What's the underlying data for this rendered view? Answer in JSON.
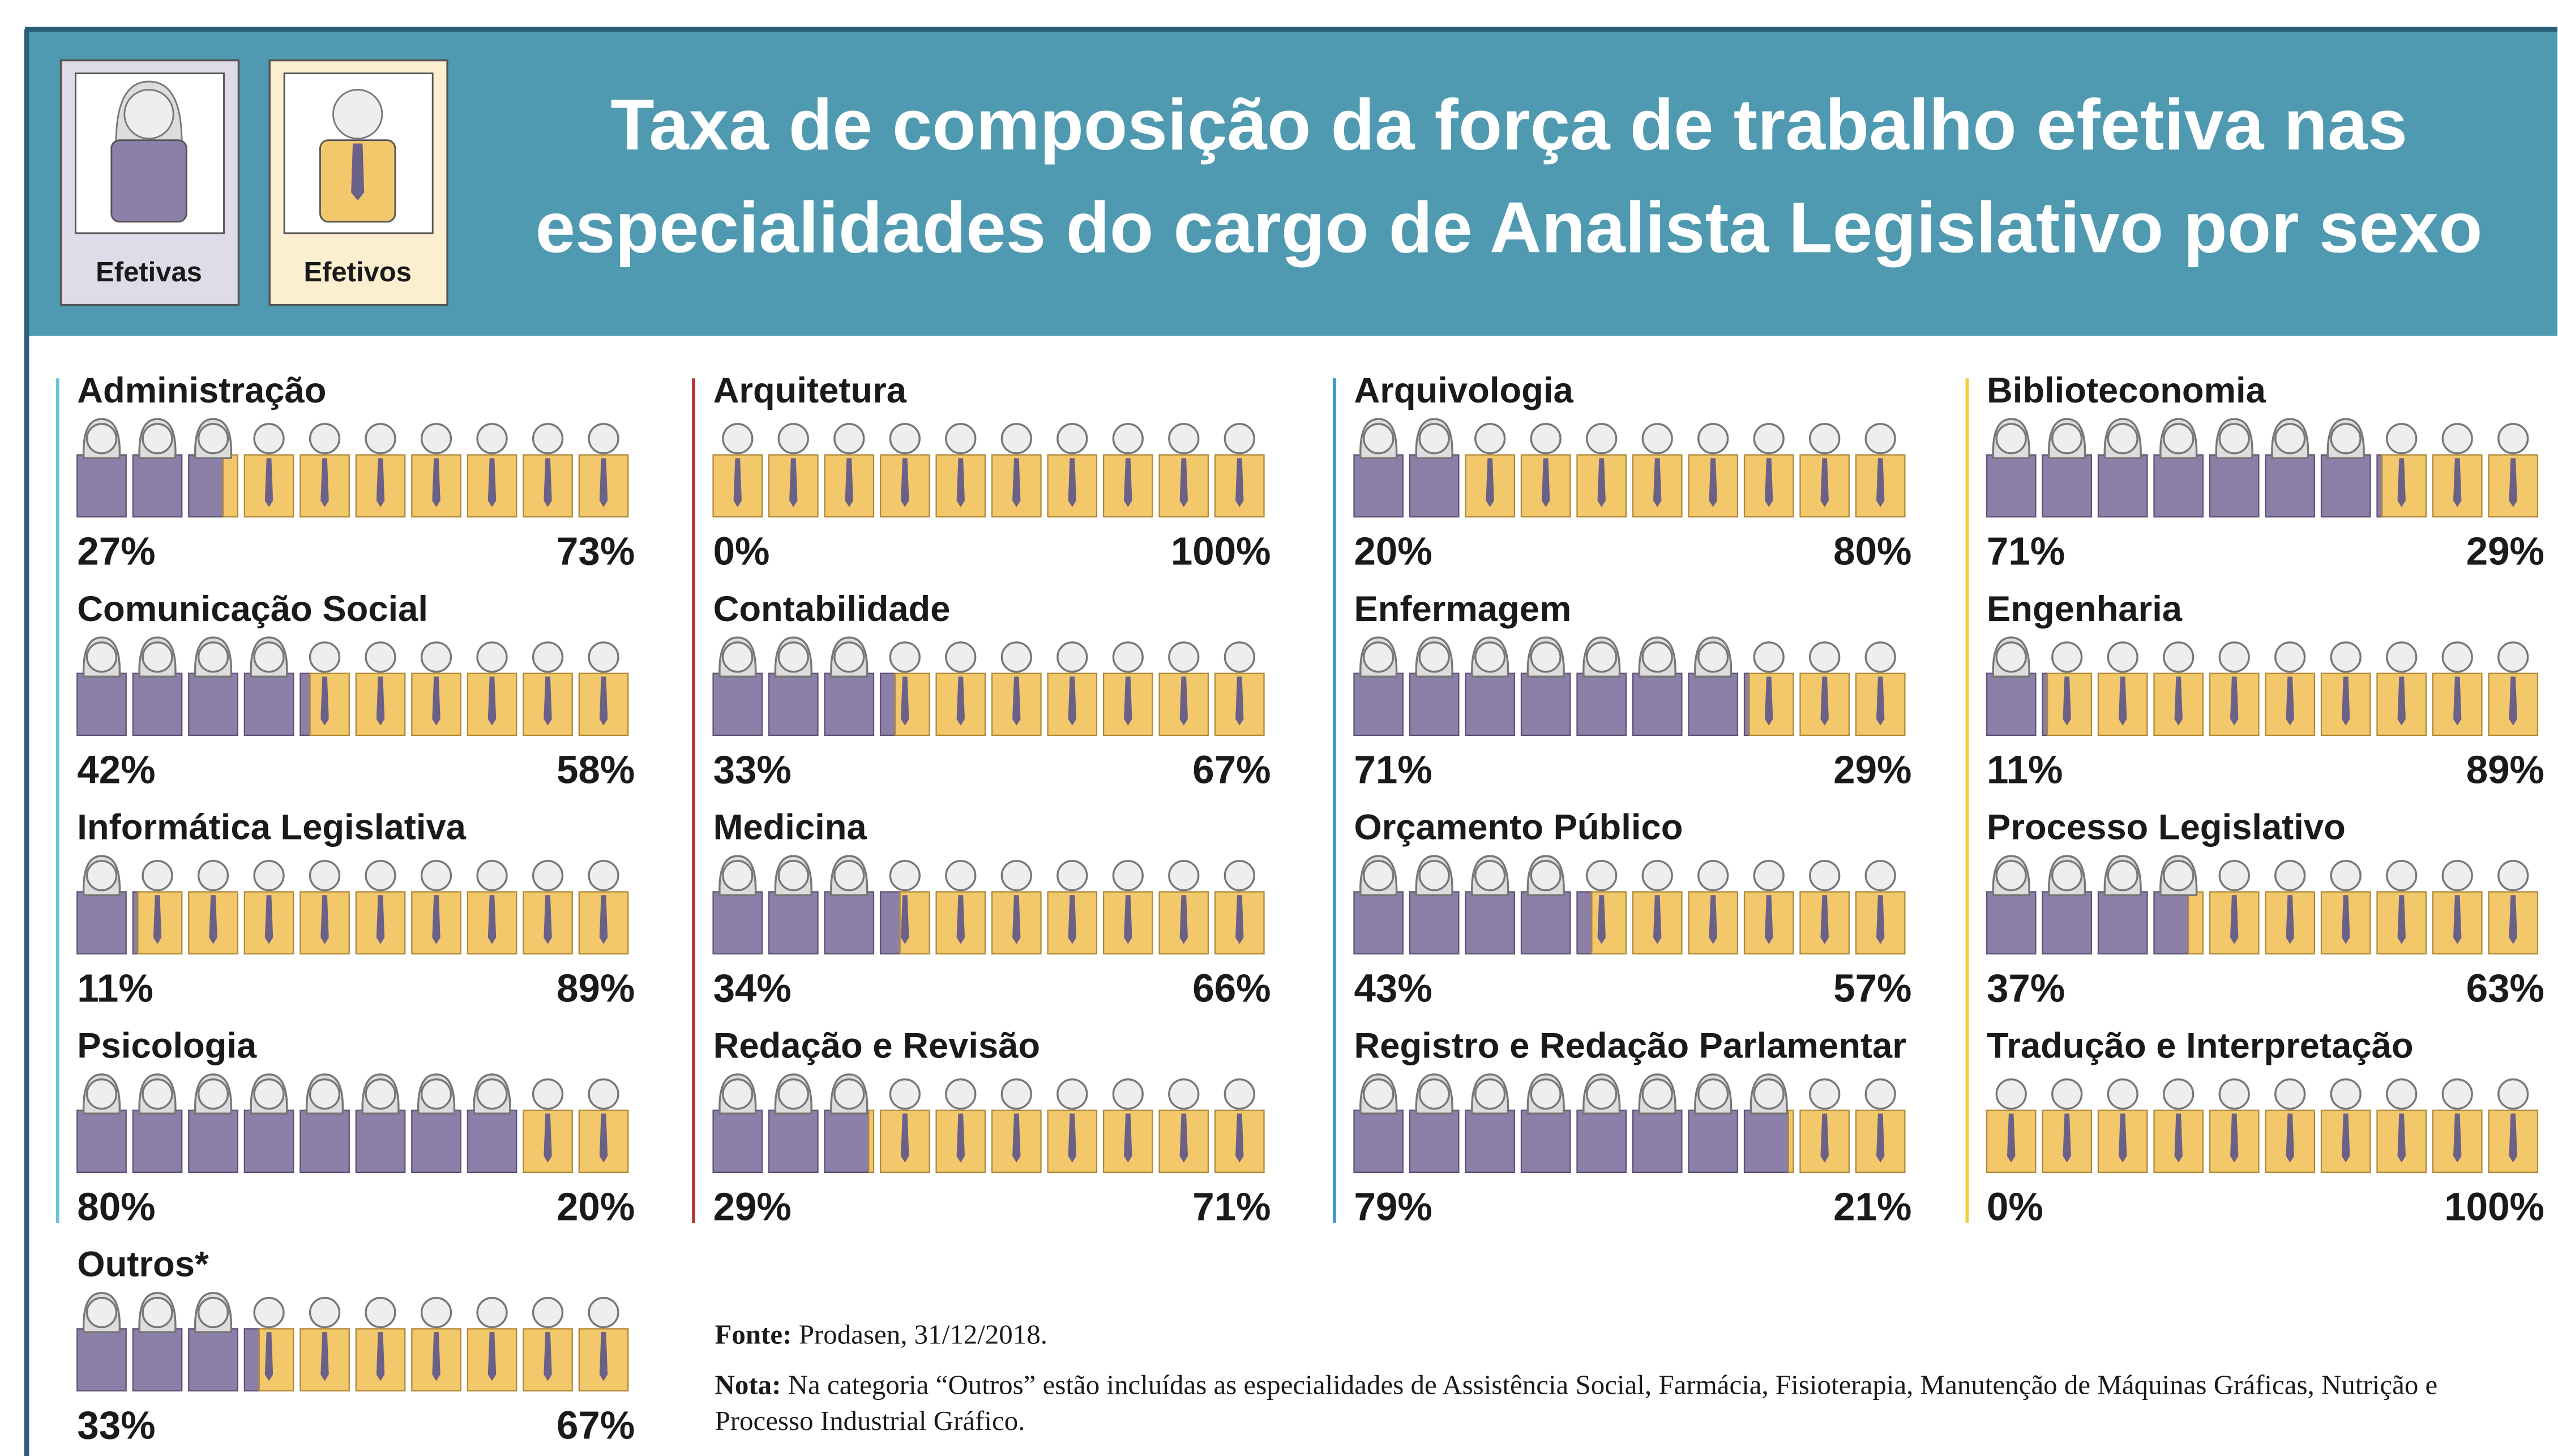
{
  "header": {
    "title_lines": [
      "Taxa de composição da força de trabalho efetiva nas",
      "especialidades do cargo de Analista Legislativo por sexo"
    ]
  },
  "chart_data": {
    "type": "pictograph",
    "categories": [
      "Administração",
      "Comunicação Social",
      "Informática Legislativa",
      "Psicologia",
      "Outros*",
      "Arquitetura",
      "Contabilidade",
      "Medicina",
      "Redação e Revisão",
      "Arquivologia",
      "Enfermagem",
      "Orçamento Público",
      "Registro e Redação Parlamentar",
      "Biblioteconomia",
      "Engenharia",
      "Processo Legislativo",
      "Tradução e Interpretação"
    ],
    "series": [
      {
        "name": "Efetivas",
        "color": "#8c7fa8",
        "values": [
          27,
          42,
          11,
          80,
          33,
          0,
          33,
          34,
          29,
          20,
          71,
          43,
          79,
          71,
          11,
          37,
          0
        ],
        "value_labels": [
          "27%",
          "42%",
          "11%",
          "80%",
          "33%",
          "0%",
          "33%",
          "34%",
          "29%",
          "20%",
          "71%",
          "43%",
          "79%",
          "71%",
          "11%",
          "37%",
          "0%"
        ]
      },
      {
        "name": "Efetivos",
        "color": "#f2c86a",
        "values": [
          73,
          58,
          89,
          20,
          67,
          100,
          67,
          66,
          71,
          80,
          29,
          57,
          21,
          29,
          89,
          63,
          100
        ],
        "value_labels": [
          "73%",
          "58%",
          "89%",
          "20%",
          "67%",
          "100%",
          "67%",
          "66%",
          "71%",
          "80%",
          "29%",
          "57%",
          "21%",
          "29%",
          "89%",
          "63%",
          "100%"
        ]
      }
    ]
  },
  "footer": {
    "source_label": "Fonte:",
    "source": "Prodasen, 31/12/2018.",
    "note_label": "Nota:",
    "note": "Na categoria “Outros” estão incluídas as especialidades de Assistência Social, Farmácia, Fisioterapia, Manutenção de Máquinas Gráficas, Nutrição e Processo Industrial Gráfico."
  }
}
